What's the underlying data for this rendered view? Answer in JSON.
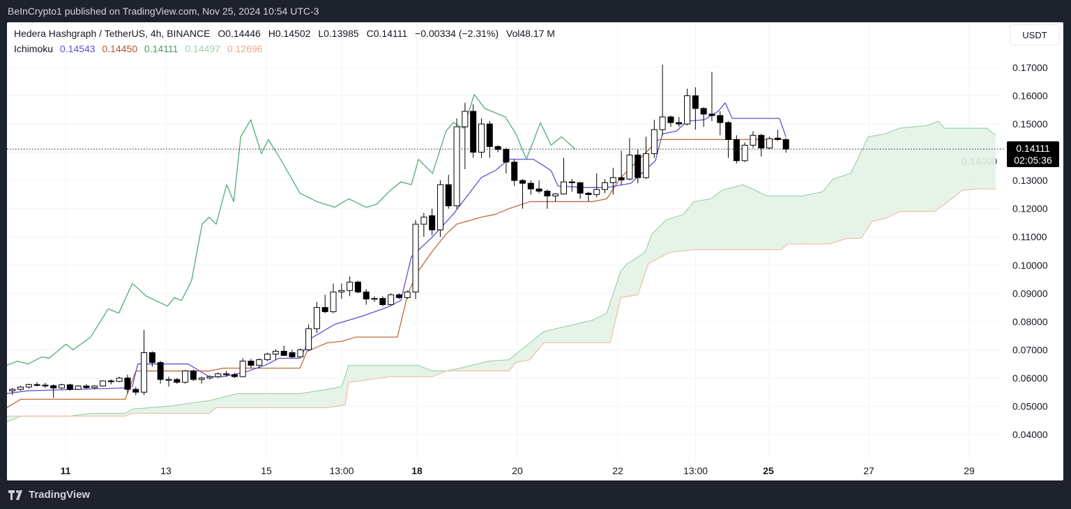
{
  "published": "BeInCrypto1 published on TradingView.com, Nov 25, 2024 10:54 UTC-3",
  "legend": {
    "symbol": "Hedera Hashgraph / TetherUS, 4h, BINANCE",
    "open": "O0.14446",
    "high": "H0.14502",
    "low": "L0.13985",
    "close": "C0.14111",
    "change": "−0.00334 (−2.31%)",
    "volume": "Vol48.17 M",
    "indicator": "Ichimoku",
    "ichimoku_values": [
      {
        "value": "0.14543",
        "color": "#5b51d8"
      },
      {
        "value": "0.14450",
        "color": "#b5562a"
      },
      {
        "value": "0.14111",
        "color": "#43a060"
      },
      {
        "value": "0.14497",
        "color": "#9ccfa9"
      },
      {
        "value": "0.12696",
        "color": "#f2a98c"
      }
    ]
  },
  "currency_button": "USDT",
  "current_price": {
    "value": "0.14111",
    "countdown": "02:05:36"
  },
  "footer_logo": "TradingView",
  "colors": {
    "tenkan": "#5b51d8",
    "kijun": "#c0693a",
    "chikou": "#4caf72",
    "span_a": "#8fcca0",
    "span_b": "#f0b49a",
    "cloud": "#e3f2e6",
    "up": "#ffffff",
    "down": "#000000"
  },
  "chart_data": {
    "type": "candlestick",
    "ylim": [
      0.035,
      0.176
    ],
    "y_ticks": [
      "0.17000",
      "0.16000",
      "0.15000",
      "0.14000",
      "0.13000",
      "0.12000",
      "0.11000",
      "0.10000",
      "0.09000",
      "0.08000",
      "0.07000",
      "0.06000",
      "0.05000",
      "0.04000"
    ],
    "x_ticks": [
      {
        "label": "11",
        "day": 11
      },
      {
        "label": "13",
        "day": 13
      },
      {
        "label": "15",
        "day": 15
      },
      {
        "label": "13:00",
        "day": 16.5
      },
      {
        "label": "18",
        "day": 18
      },
      {
        "label": "20",
        "day": 20
      },
      {
        "label": "22",
        "day": 22
      },
      {
        "label": "13:00",
        "day": 23.55
      },
      {
        "label": "25",
        "day": 25
      },
      {
        "label": "27",
        "day": 27
      },
      {
        "label": "29",
        "day": 29
      }
    ],
    "bold_x_ticks": [
      "11",
      "18",
      "25"
    ],
    "grid": true,
    "candles_ohlc": [
      [
        0.0555,
        0.0565,
        0.054,
        0.056
      ],
      [
        0.056,
        0.0572,
        0.0555,
        0.0568
      ],
      [
        0.0568,
        0.058,
        0.0562,
        0.0577
      ],
      [
        0.0577,
        0.0585,
        0.057,
        0.0575
      ],
      [
        0.0575,
        0.0583,
        0.0565,
        0.0573
      ],
      [
        0.0573,
        0.0578,
        0.053,
        0.0565
      ],
      [
        0.0565,
        0.058,
        0.056,
        0.0576
      ],
      [
        0.0576,
        0.058,
        0.0555,
        0.056
      ],
      [
        0.056,
        0.0575,
        0.0558,
        0.0572
      ],
      [
        0.0572,
        0.0578,
        0.0562,
        0.0566
      ],
      [
        0.0566,
        0.0575,
        0.056,
        0.0572
      ],
      [
        0.0572,
        0.0592,
        0.057,
        0.059
      ],
      [
        0.059,
        0.0595,
        0.0578,
        0.0588
      ],
      [
        0.0588,
        0.0605,
        0.0585,
        0.06
      ],
      [
        0.06,
        0.0612,
        0.0545,
        0.056
      ],
      [
        0.056,
        0.0568,
        0.054,
        0.055
      ],
      [
        0.055,
        0.077,
        0.054,
        0.069
      ],
      [
        0.069,
        0.0695,
        0.064,
        0.0655
      ],
      [
        0.0655,
        0.066,
        0.058,
        0.0595
      ],
      [
        0.0595,
        0.0605,
        0.057,
        0.0595
      ],
      [
        0.0595,
        0.06,
        0.058,
        0.0585
      ],
      [
        0.0585,
        0.0628,
        0.058,
        0.0625
      ],
      [
        0.0625,
        0.063,
        0.059,
        0.0595
      ],
      [
        0.0595,
        0.0605,
        0.058,
        0.06
      ],
      [
        0.06,
        0.061,
        0.0595,
        0.0605
      ],
      [
        0.0605,
        0.062,
        0.06,
        0.0615
      ],
      [
        0.0615,
        0.0625,
        0.0605,
        0.0612
      ],
      [
        0.0612,
        0.0618,
        0.06,
        0.0605
      ],
      [
        0.0605,
        0.067,
        0.0603,
        0.066
      ],
      [
        0.066,
        0.0668,
        0.0635,
        0.0645
      ],
      [
        0.0645,
        0.067,
        0.0635,
        0.0665
      ],
      [
        0.0665,
        0.069,
        0.066,
        0.0685
      ],
      [
        0.0685,
        0.0702,
        0.0665,
        0.0695
      ],
      [
        0.0695,
        0.0715,
        0.068,
        0.068
      ],
      [
        0.069,
        0.07,
        0.067,
        0.0675
      ],
      [
        0.0675,
        0.0705,
        0.0672,
        0.07
      ],
      [
        0.07,
        0.079,
        0.0695,
        0.0775
      ],
      [
        0.0775,
        0.087,
        0.076,
        0.085
      ],
      [
        0.085,
        0.0895,
        0.083,
        0.0835
      ],
      [
        0.0835,
        0.0935,
        0.083,
        0.0905
      ],
      [
        0.0905,
        0.0935,
        0.088,
        0.091
      ],
      [
        0.091,
        0.096,
        0.089,
        0.094
      ],
      [
        0.094,
        0.0945,
        0.09,
        0.0905
      ],
      [
        0.0905,
        0.0915,
        0.086,
        0.088
      ],
      [
        0.088,
        0.089,
        0.087,
        0.0882
      ],
      [
        0.0882,
        0.089,
        0.0855,
        0.086
      ],
      [
        0.086,
        0.09,
        0.0858,
        0.0895
      ],
      [
        0.0895,
        0.09,
        0.088,
        0.0885
      ],
      [
        0.0885,
        0.091,
        0.088,
        0.0905
      ],
      [
        0.0905,
        0.116,
        0.088,
        0.1145
      ],
      [
        0.1145,
        0.1185,
        0.11,
        0.117
      ],
      [
        0.1175,
        0.12,
        0.1105,
        0.1125
      ],
      [
        0.1125,
        0.13,
        0.11,
        0.1285
      ],
      [
        0.1285,
        0.132,
        0.12,
        0.121
      ],
      [
        0.121,
        0.152,
        0.12,
        0.149
      ],
      [
        0.149,
        0.1575,
        0.134,
        0.1545
      ],
      [
        0.1545,
        0.157,
        0.138,
        0.14
      ],
      [
        0.14,
        0.152,
        0.138,
        0.15
      ],
      [
        0.15,
        0.151,
        0.138,
        0.142
      ],
      [
        0.142,
        0.1425,
        0.14,
        0.141
      ],
      [
        0.141,
        0.1415,
        0.1325,
        0.1365
      ],
      [
        0.1365,
        0.1375,
        0.128,
        0.13
      ],
      [
        0.13,
        0.1305,
        0.12,
        0.129
      ],
      [
        0.129,
        0.13,
        0.125,
        0.127
      ],
      [
        0.127,
        0.13,
        0.1255,
        0.1262
      ],
      [
        0.1262,
        0.1268,
        0.12,
        0.1245
      ],
      [
        0.1245,
        0.1255,
        0.1225,
        0.1252
      ],
      [
        0.1252,
        0.138,
        0.125,
        0.1295
      ],
      [
        0.1295,
        0.1305,
        0.126,
        0.1292
      ],
      [
        0.1292,
        0.1295,
        0.1235,
        0.1255
      ],
      [
        0.1255,
        0.126,
        0.1225,
        0.125
      ],
      [
        0.125,
        0.1325,
        0.124,
        0.1268
      ],
      [
        0.1268,
        0.1305,
        0.1255,
        0.1292
      ],
      [
        0.1292,
        0.1345,
        0.125,
        0.131
      ],
      [
        0.131,
        0.1405,
        0.1285,
        0.1302
      ],
      [
        0.1305,
        0.145,
        0.13,
        0.139
      ],
      [
        0.139,
        0.141,
        0.129,
        0.131
      ],
      [
        0.131,
        0.1455,
        0.1305,
        0.1395
      ],
      [
        0.1395,
        0.1515,
        0.138,
        0.148
      ],
      [
        0.148,
        0.171,
        0.146,
        0.1525
      ],
      [
        0.1525,
        0.153,
        0.149,
        0.1505
      ],
      [
        0.1505,
        0.1525,
        0.149,
        0.15
      ],
      [
        0.15,
        0.1625,
        0.1495,
        0.16
      ],
      [
        0.16,
        0.163,
        0.148,
        0.1555
      ],
      [
        0.1555,
        0.156,
        0.149,
        0.1535
      ],
      [
        0.1535,
        0.1685,
        0.151,
        0.153
      ],
      [
        0.153,
        0.1545,
        0.146,
        0.1505
      ],
      [
        0.1505,
        0.151,
        0.138,
        0.1445
      ],
      [
        0.1445,
        0.146,
        0.136,
        0.137
      ],
      [
        0.137,
        0.1435,
        0.1365,
        0.1425
      ],
      [
        0.1425,
        0.1475,
        0.1415,
        0.146
      ],
      [
        0.146,
        0.1465,
        0.1385,
        0.1415
      ],
      [
        0.1415,
        0.1455,
        0.1412,
        0.1448
      ],
      [
        0.145,
        0.148,
        0.144,
        0.1445
      ],
      [
        0.14446,
        0.14502,
        0.13985,
        0.14111
      ]
    ],
    "candle_first_day": 9.94,
    "candle_last_day": 25.35,
    "tenkan": [
      [
        9.83,
        0.0545
      ],
      [
        10.25,
        0.0555
      ],
      [
        10.81,
        0.0558
      ],
      [
        12.19,
        0.0565
      ],
      [
        12.33,
        0.057
      ],
      [
        12.44,
        0.065
      ],
      [
        13.44,
        0.065
      ],
      [
        13.86,
        0.0605
      ],
      [
        14.14,
        0.0605
      ],
      [
        14.56,
        0.062
      ],
      [
        14.97,
        0.0645
      ],
      [
        15.25,
        0.067
      ],
      [
        15.67,
        0.067
      ],
      [
        15.88,
        0.074
      ],
      [
        16.36,
        0.079
      ],
      [
        16.92,
        0.082
      ],
      [
        17.4,
        0.085
      ],
      [
        17.68,
        0.0875
      ],
      [
        17.89,
        0.103
      ],
      [
        18.31,
        0.11
      ],
      [
        18.72,
        0.118
      ],
      [
        19.28,
        0.131
      ],
      [
        19.56,
        0.1335
      ],
      [
        19.83,
        0.1375
      ],
      [
        20.32,
        0.1375
      ],
      [
        20.67,
        0.1335
      ],
      [
        20.81,
        0.128
      ],
      [
        21.36,
        0.1275
      ],
      [
        21.78,
        0.1275
      ],
      [
        22.26,
        0.129
      ],
      [
        22.75,
        0.137
      ],
      [
        22.89,
        0.1465
      ],
      [
        23.17,
        0.1475
      ],
      [
        23.38,
        0.151
      ],
      [
        23.72,
        0.1515
      ],
      [
        24.0,
        0.1545
      ],
      [
        24.14,
        0.1575
      ],
      [
        24.28,
        0.152
      ],
      [
        25.22,
        0.152
      ],
      [
        25.35,
        0.14543
      ]
    ],
    "kijun": [
      [
        9.83,
        0.0495
      ],
      [
        10.11,
        0.0525
      ],
      [
        12.19,
        0.0525
      ],
      [
        12.4,
        0.0625
      ],
      [
        13.86,
        0.0625
      ],
      [
        14.14,
        0.0635
      ],
      [
        15.67,
        0.0635
      ],
      [
        15.81,
        0.0695
      ],
      [
        16.22,
        0.0725
      ],
      [
        16.5,
        0.073
      ],
      [
        16.78,
        0.0745
      ],
      [
        17.61,
        0.0745
      ],
      [
        17.82,
        0.09
      ],
      [
        18.03,
        0.098
      ],
      [
        18.31,
        0.105
      ],
      [
        18.58,
        0.111
      ],
      [
        18.79,
        0.1145
      ],
      [
        19.28,
        0.117
      ],
      [
        19.56,
        0.118
      ],
      [
        19.83,
        0.12
      ],
      [
        20.25,
        0.1225
      ],
      [
        21.5,
        0.1225
      ],
      [
        21.78,
        0.1235
      ],
      [
        22.06,
        0.131
      ],
      [
        22.82,
        0.1445
      ],
      [
        25.35,
        0.1445
      ]
    ],
    "chikou": [
      [
        9.83,
        0.0645
      ],
      [
        10.04,
        0.066
      ],
      [
        10.25,
        0.065
      ],
      [
        10.53,
        0.0675
      ],
      [
        10.67,
        0.067
      ],
      [
        11.01,
        0.072
      ],
      [
        11.15,
        0.07
      ],
      [
        11.5,
        0.0745
      ],
      [
        11.85,
        0.0845
      ],
      [
        12.06,
        0.083
      ],
      [
        12.33,
        0.0935
      ],
      [
        12.61,
        0.089
      ],
      [
        13.03,
        0.0855
      ],
      [
        13.17,
        0.0885
      ],
      [
        13.31,
        0.0875
      ],
      [
        13.51,
        0.0945
      ],
      [
        13.72,
        0.1145
      ],
      [
        13.86,
        0.117
      ],
      [
        14.0,
        0.1145
      ],
      [
        14.21,
        0.1285
      ],
      [
        14.35,
        0.1225
      ],
      [
        14.49,
        0.1455
      ],
      [
        14.69,
        0.1515
      ],
      [
        14.9,
        0.1395
      ],
      [
        15.04,
        0.1445
      ],
      [
        15.25,
        0.1385
      ],
      [
        15.67,
        0.1255
      ],
      [
        16.01,
        0.1225
      ],
      [
        16.36,
        0.1205
      ],
      [
        16.64,
        0.1235
      ],
      [
        16.99,
        0.1205
      ],
      [
        17.19,
        0.1215
      ],
      [
        17.47,
        0.1265
      ],
      [
        17.68,
        0.1295
      ],
      [
        17.89,
        0.1285
      ],
      [
        18.03,
        0.1375
      ],
      [
        18.31,
        0.1325
      ],
      [
        18.58,
        0.1475
      ],
      [
        18.72,
        0.1505
      ],
      [
        18.93,
        0.1485
      ],
      [
        19.14,
        0.1605
      ],
      [
        19.35,
        0.1555
      ],
      [
        19.76,
        0.1525
      ],
      [
        19.97,
        0.1465
      ],
      [
        20.18,
        0.1375
      ],
      [
        20.46,
        0.1505
      ],
      [
        20.67,
        0.1425
      ],
      [
        20.88,
        0.1455
      ],
      [
        21.15,
        0.14111
      ]
    ],
    "span_a": [
      [
        9.83,
        0.0445
      ],
      [
        10.11,
        0.0465
      ],
      [
        11.08,
        0.0465
      ],
      [
        11.5,
        0.0475
      ],
      [
        12.19,
        0.0475
      ],
      [
        12.33,
        0.049
      ],
      [
        13.03,
        0.05
      ],
      [
        13.86,
        0.052
      ],
      [
        14.42,
        0.0545
      ],
      [
        15.67,
        0.0545
      ],
      [
        16.22,
        0.056
      ],
      [
        16.5,
        0.057
      ],
      [
        16.64,
        0.0645
      ],
      [
        18.03,
        0.0645
      ],
      [
        18.31,
        0.0625
      ],
      [
        18.58,
        0.0625
      ],
      [
        18.86,
        0.0635
      ],
      [
        19.42,
        0.066
      ],
      [
        19.83,
        0.0665
      ],
      [
        20.11,
        0.0705
      ],
      [
        20.53,
        0.0765
      ],
      [
        21.5,
        0.0805
      ],
      [
        21.78,
        0.083
      ],
      [
        22.06,
        0.098
      ],
      [
        22.19,
        0.1005
      ],
      [
        22.54,
        0.1045
      ],
      [
        22.68,
        0.111
      ],
      [
        22.96,
        0.116
      ],
      [
        23.31,
        0.118
      ],
      [
        23.51,
        0.1225
      ],
      [
        23.86,
        0.1235
      ],
      [
        24.07,
        0.1265
      ],
      [
        24.49,
        0.1285
      ],
      [
        24.69,
        0.127
      ],
      [
        24.97,
        0.1245
      ],
      [
        25.67,
        0.1245
      ],
      [
        26.08,
        0.126
      ],
      [
        26.29,
        0.1305
      ],
      [
        26.64,
        0.1325
      ],
      [
        26.99,
        0.1455
      ],
      [
        27.33,
        0.1465
      ],
      [
        27.61,
        0.1485
      ],
      [
        28.17,
        0.1495
      ],
      [
        28.38,
        0.151
      ],
      [
        28.51,
        0.1485
      ],
      [
        29.35,
        0.1485
      ],
      [
        29.53,
        0.146
      ]
    ],
    "span_b": [
      [
        9.83,
        0.0465
      ],
      [
        12.19,
        0.0465
      ],
      [
        12.33,
        0.0475
      ],
      [
        13.86,
        0.0475
      ],
      [
        14.0,
        0.0495
      ],
      [
        16.22,
        0.0495
      ],
      [
        16.57,
        0.0505
      ],
      [
        16.64,
        0.0585
      ],
      [
        17.47,
        0.0605
      ],
      [
        18.31,
        0.0605
      ],
      [
        18.58,
        0.0625
      ],
      [
        19.83,
        0.0625
      ],
      [
        19.97,
        0.0655
      ],
      [
        20.25,
        0.0665
      ],
      [
        20.53,
        0.0725
      ],
      [
        21.85,
        0.0725
      ],
      [
        22.06,
        0.0885
      ],
      [
        22.4,
        0.0895
      ],
      [
        22.61,
        0.1005
      ],
      [
        23.03,
        0.1045
      ],
      [
        23.51,
        0.1055
      ],
      [
        25.25,
        0.1055
      ],
      [
        25.39,
        0.1075
      ],
      [
        26.22,
        0.1075
      ],
      [
        26.57,
        0.1095
      ],
      [
        26.85,
        0.1095
      ],
      [
        27.06,
        0.1155
      ],
      [
        27.33,
        0.1165
      ],
      [
        27.61,
        0.119
      ],
      [
        28.31,
        0.119
      ],
      [
        28.58,
        0.1225
      ],
      [
        28.86,
        0.1265
      ],
      [
        29.14,
        0.127
      ],
      [
        29.53,
        0.127
      ]
    ]
  }
}
